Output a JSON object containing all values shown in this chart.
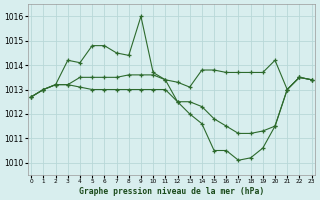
{
  "title": "Graphe pression niveau de la mer (hPa)",
  "background_color": "#d8eeee",
  "grid_color": "#b8d8d8",
  "line_color": "#2d6a2d",
  "xlim": [
    -0.3,
    23.3
  ],
  "ylim": [
    1009.5,
    1016.5
  ],
  "yticks": [
    1010,
    1011,
    1012,
    1013,
    1014,
    1015,
    1016
  ],
  "xticks": [
    0,
    1,
    2,
    3,
    4,
    5,
    6,
    7,
    8,
    9,
    10,
    11,
    12,
    13,
    14,
    15,
    16,
    17,
    18,
    19,
    20,
    21,
    22,
    23
  ],
  "series": [
    {
      "x": [
        0,
        1,
        2,
        3,
        4,
        5,
        6,
        7,
        8,
        9,
        10,
        11,
        12,
        13,
        14,
        15,
        16,
        17,
        18,
        19,
        20,
        21,
        22,
        23
      ],
      "y": [
        1012.7,
        1013.0,
        1013.2,
        1014.2,
        1014.1,
        1014.8,
        1014.8,
        1014.5,
        1014.4,
        1016.0,
        1013.7,
        1013.4,
        1013.3,
        1013.1,
        1013.8,
        1013.8,
        1013.7,
        1013.7,
        1013.7,
        1013.7,
        1014.2,
        1013.0,
        1013.5,
        1013.4
      ]
    },
    {
      "x": [
        0,
        1,
        2,
        3,
        4,
        5,
        6,
        7,
        8,
        9,
        10,
        11,
        12,
        13,
        14,
        15,
        16,
        17,
        18,
        19,
        20,
        21,
        22,
        23
      ],
      "y": [
        1012.7,
        1013.0,
        1013.2,
        1013.2,
        1013.5,
        1013.5,
        1013.5,
        1013.5,
        1013.6,
        1013.6,
        1013.6,
        1013.4,
        1012.5,
        1012.5,
        1012.3,
        1011.8,
        1011.5,
        1011.2,
        1011.2,
        1011.3,
        1011.5,
        1013.0,
        1013.5,
        1013.4
      ]
    },
    {
      "x": [
        0,
        1,
        2,
        3,
        4,
        5,
        6,
        7,
        8,
        9,
        10,
        11,
        12,
        13,
        14,
        15,
        16,
        17,
        18,
        19,
        20,
        21,
        22,
        23
      ],
      "y": [
        1012.7,
        1013.0,
        1013.2,
        1013.2,
        1013.1,
        1013.0,
        1013.0,
        1013.0,
        1013.0,
        1013.0,
        1013.0,
        1013.0,
        1012.5,
        1012.0,
        1011.6,
        1010.5,
        1010.5,
        1010.1,
        1010.2,
        1010.6,
        1011.5,
        1013.0,
        1013.5,
        1013.4
      ]
    }
  ]
}
